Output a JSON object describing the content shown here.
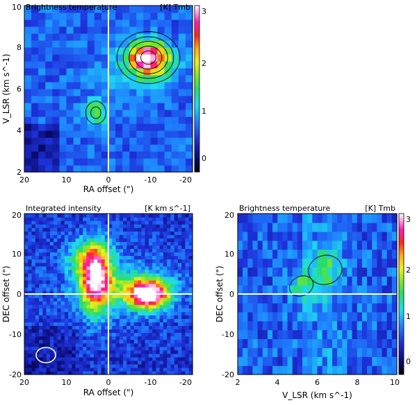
{
  "chart_data": [
    {
      "type": "heatmap",
      "panel": "top-left",
      "title": "Brightness temperature",
      "unit_label": "[K] Tmb",
      "xlabel": "RA offset (\")",
      "ylabel": "V_LSR (km s^-1)",
      "xlim": [
        20,
        -20
      ],
      "ylim": [
        2,
        10
      ],
      "xticks": [
        20,
        10,
        0,
        -10,
        -20
      ],
      "yticks": [
        2,
        4,
        6,
        8,
        10
      ],
      "colorbar": {
        "range": [
          -0.5,
          3
        ],
        "ticks": [
          0,
          1,
          2,
          3
        ]
      },
      "cuts": [
        {
          "axis": "x",
          "value": 0
        }
      ],
      "features": [
        {
          "ra": -9.5,
          "v": 7.5,
          "peak": 3.0
        },
        {
          "ra": 3,
          "v": 4.85,
          "peak": 1.4
        }
      ],
      "contour_levels": [
        0.9,
        1.3,
        1.7,
        2.1,
        2.5
      ]
    },
    {
      "type": "heatmap",
      "panel": "bottom-left",
      "title": "Integrated intensity",
      "unit_label": "[K km s^-1]",
      "xlabel": "RA offset (\")",
      "ylabel": "DEC offset (\")",
      "xlim": [
        20,
        -20
      ],
      "ylim": [
        -20,
        20
      ],
      "xticks": [
        20,
        10,
        0,
        -10,
        -20
      ],
      "yticks": [
        -20,
        -10,
        0,
        10,
        20
      ],
      "cuts": [
        {
          "axis": "x",
          "value": 0
        },
        {
          "axis": "y",
          "value": 0
        }
      ],
      "features": [
        {
          "ra": 3,
          "dec": 3.5,
          "peak": 1.0
        },
        {
          "ra": -9.5,
          "dec": 0,
          "peak": 1.0
        },
        {
          "ra": 5,
          "dec": 9,
          "peak": 0.45
        }
      ],
      "beam": {
        "ra": 15,
        "dec": -15.5
      }
    },
    {
      "type": "heatmap",
      "panel": "bottom-right",
      "title": "Brightness temperature",
      "unit_label": "[K] Tmb",
      "xlabel": "V_LSR (km s^-1)",
      "ylabel": "DEC offset (\")",
      "xlim": [
        2,
        10
      ],
      "ylim": [
        -20,
        20
      ],
      "xticks": [
        2,
        4,
        6,
        8,
        10
      ],
      "yticks": [
        -20,
        -10,
        0,
        10,
        20
      ],
      "colorbar": {
        "range": [
          -0.5,
          3
        ],
        "ticks": [
          0,
          1,
          2,
          3
        ]
      },
      "cuts": [
        {
          "axis": "y",
          "value": 0
        }
      ],
      "features": [
        {
          "v": 5.2,
          "dec": 2,
          "peak": 1.0
        },
        {
          "v": 6.4,
          "dec": 6,
          "peak": 1.0
        }
      ],
      "contour_levels": [
        0.85
      ]
    }
  ]
}
